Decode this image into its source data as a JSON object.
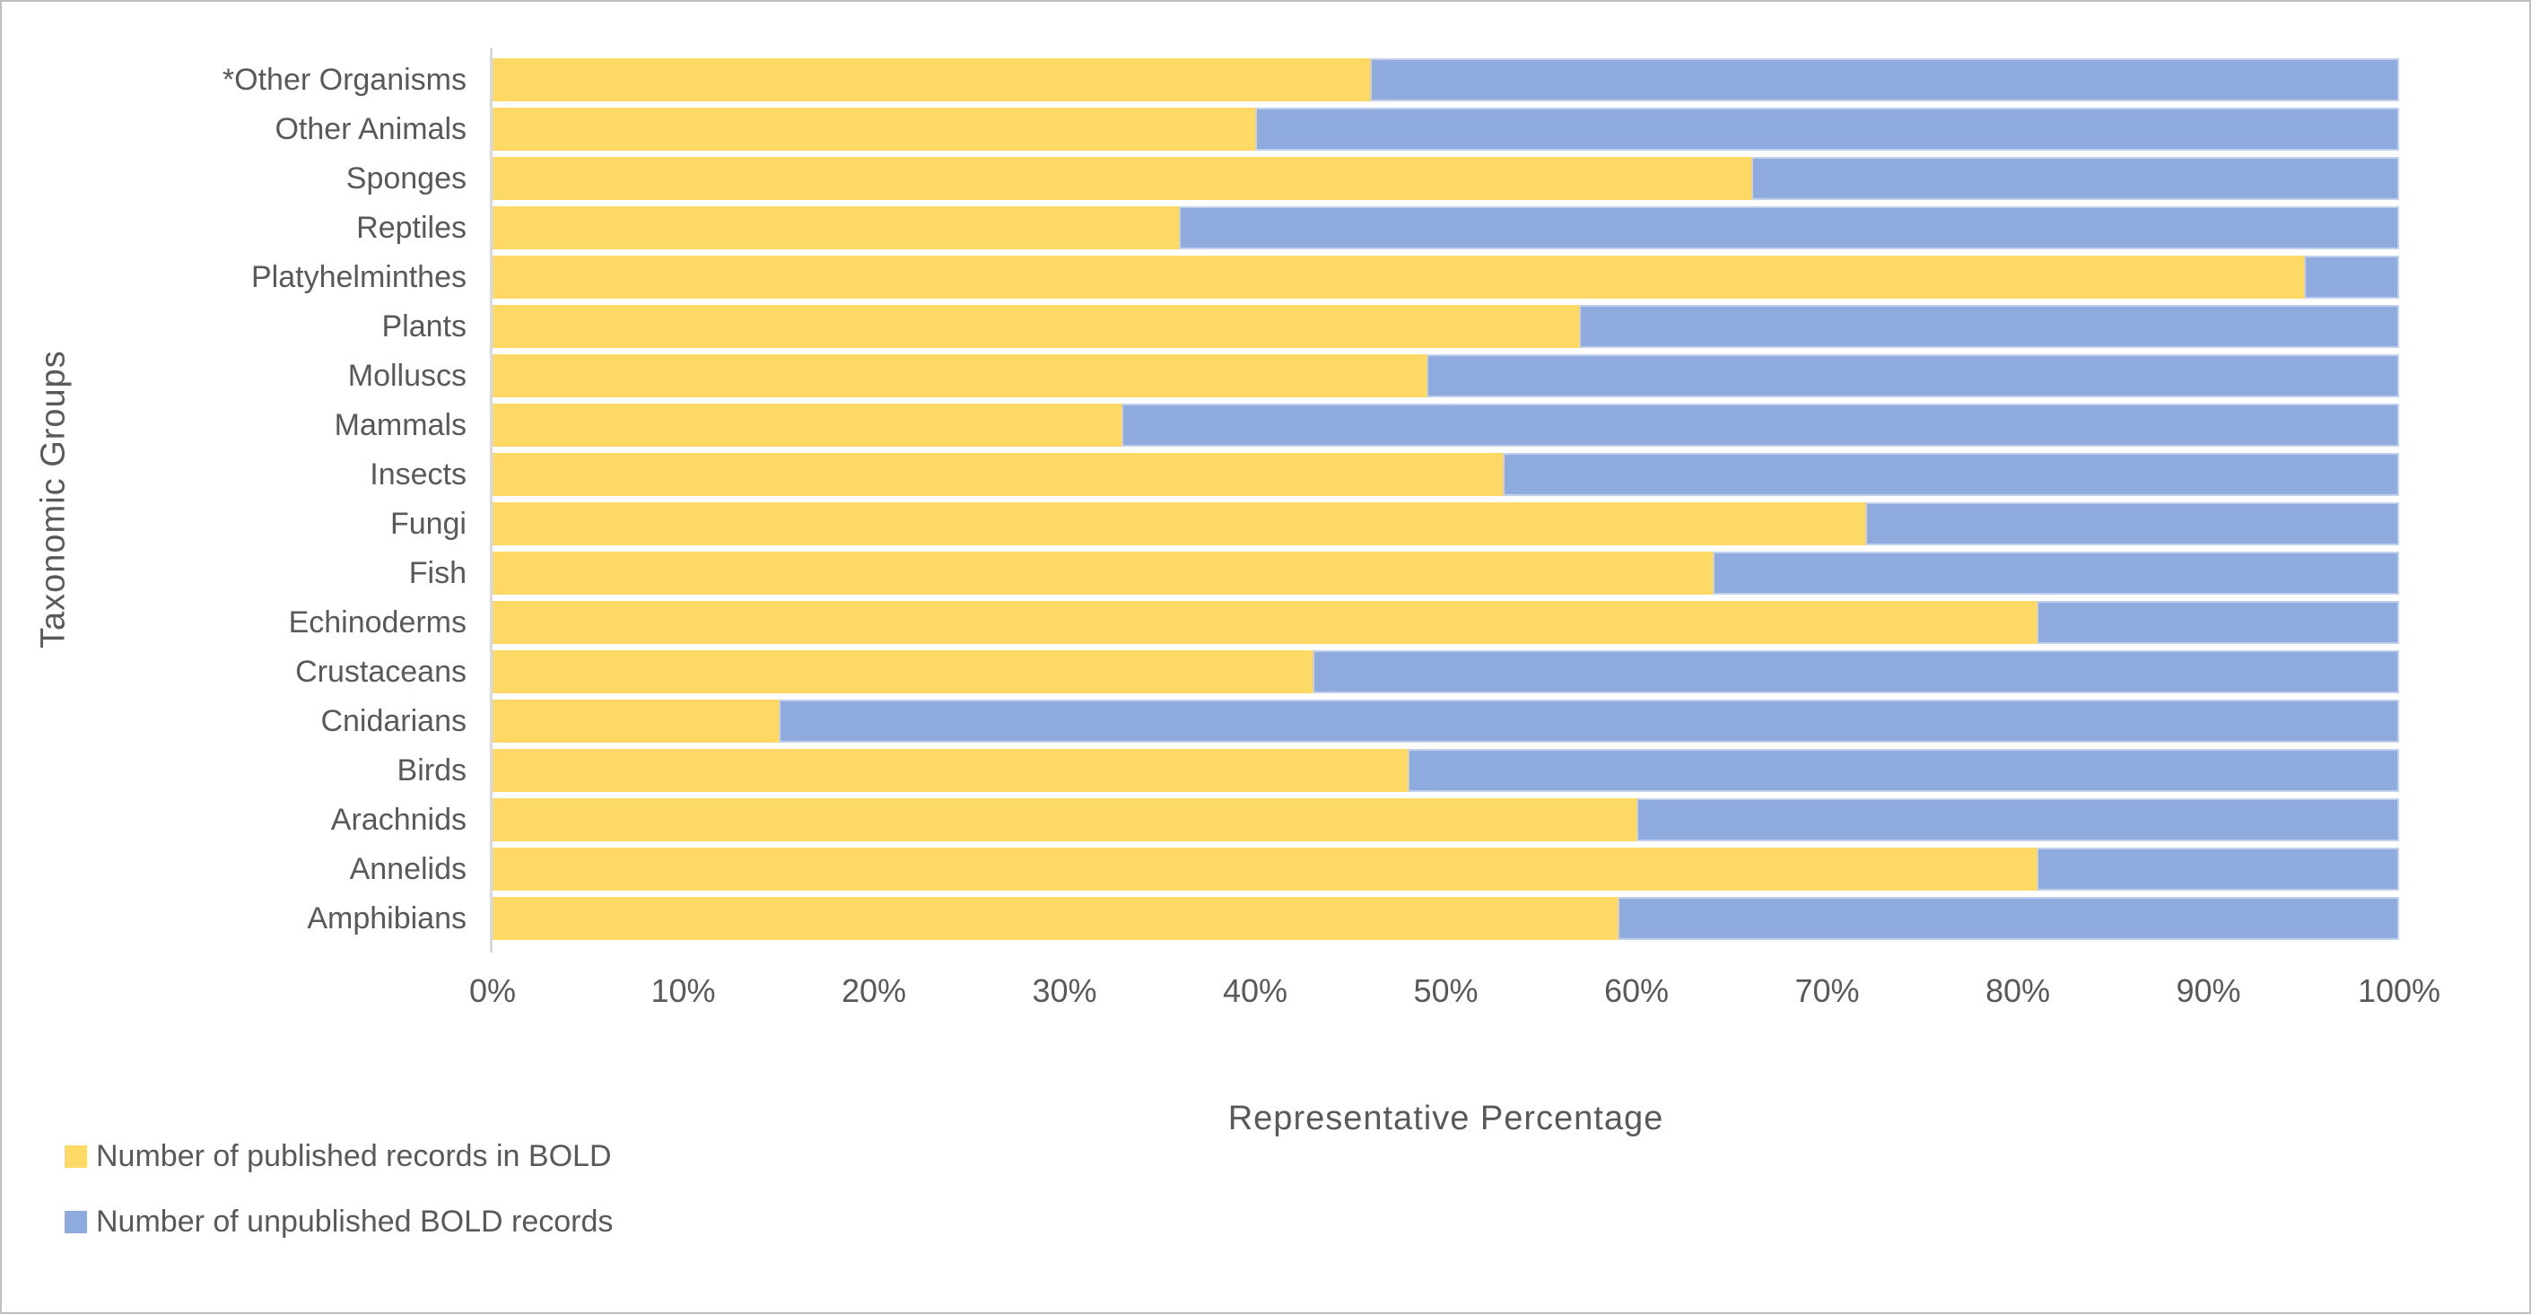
{
  "chart_data": {
    "type": "bar",
    "orientation": "horizontal",
    "stacked": true,
    "percent_stacked": true,
    "grid": false,
    "legend_position": "bottom-left",
    "xlabel": "Representative Percentage",
    "ylabel": "Taxonomic Groups",
    "xlim": [
      0,
      100
    ],
    "x_ticks": [
      "0%",
      "10%",
      "20%",
      "30%",
      "40%",
      "50%",
      "60%",
      "70%",
      "80%",
      "90%",
      "100%"
    ],
    "categories_top_to_bottom": [
      "*Other Organisms",
      "Other Animals",
      "Sponges",
      "Reptiles",
      "Platyhelminthes",
      "Plants",
      "Molluscs",
      "Mammals",
      "Insects",
      "Fungi",
      "Fish",
      "Echinoderms",
      "Crustaceans",
      "Cnidarians",
      "Birds",
      "Arachnids",
      "Annelids",
      "Amphibians"
    ],
    "series": [
      {
        "name": "Number of published records in BOLD",
        "color": "#FFD966",
        "values": [
          46,
          40,
          66,
          36,
          95,
          57,
          49,
          33,
          53,
          72,
          64,
          81,
          43,
          15,
          48,
          60,
          81,
          59
        ]
      },
      {
        "name": "Number of unpublished BOLD records",
        "color": "#8FAADC",
        "values": [
          54,
          60,
          34,
          64,
          5,
          43,
          51,
          67,
          47,
          28,
          36,
          19,
          57,
          85,
          52,
          40,
          19,
          41
        ]
      }
    ],
    "colors": {
      "text": "#595959",
      "axis_line": "#D9D9D9",
      "frame_border": "#BFBFBF",
      "background": "#FFFFFF"
    }
  }
}
